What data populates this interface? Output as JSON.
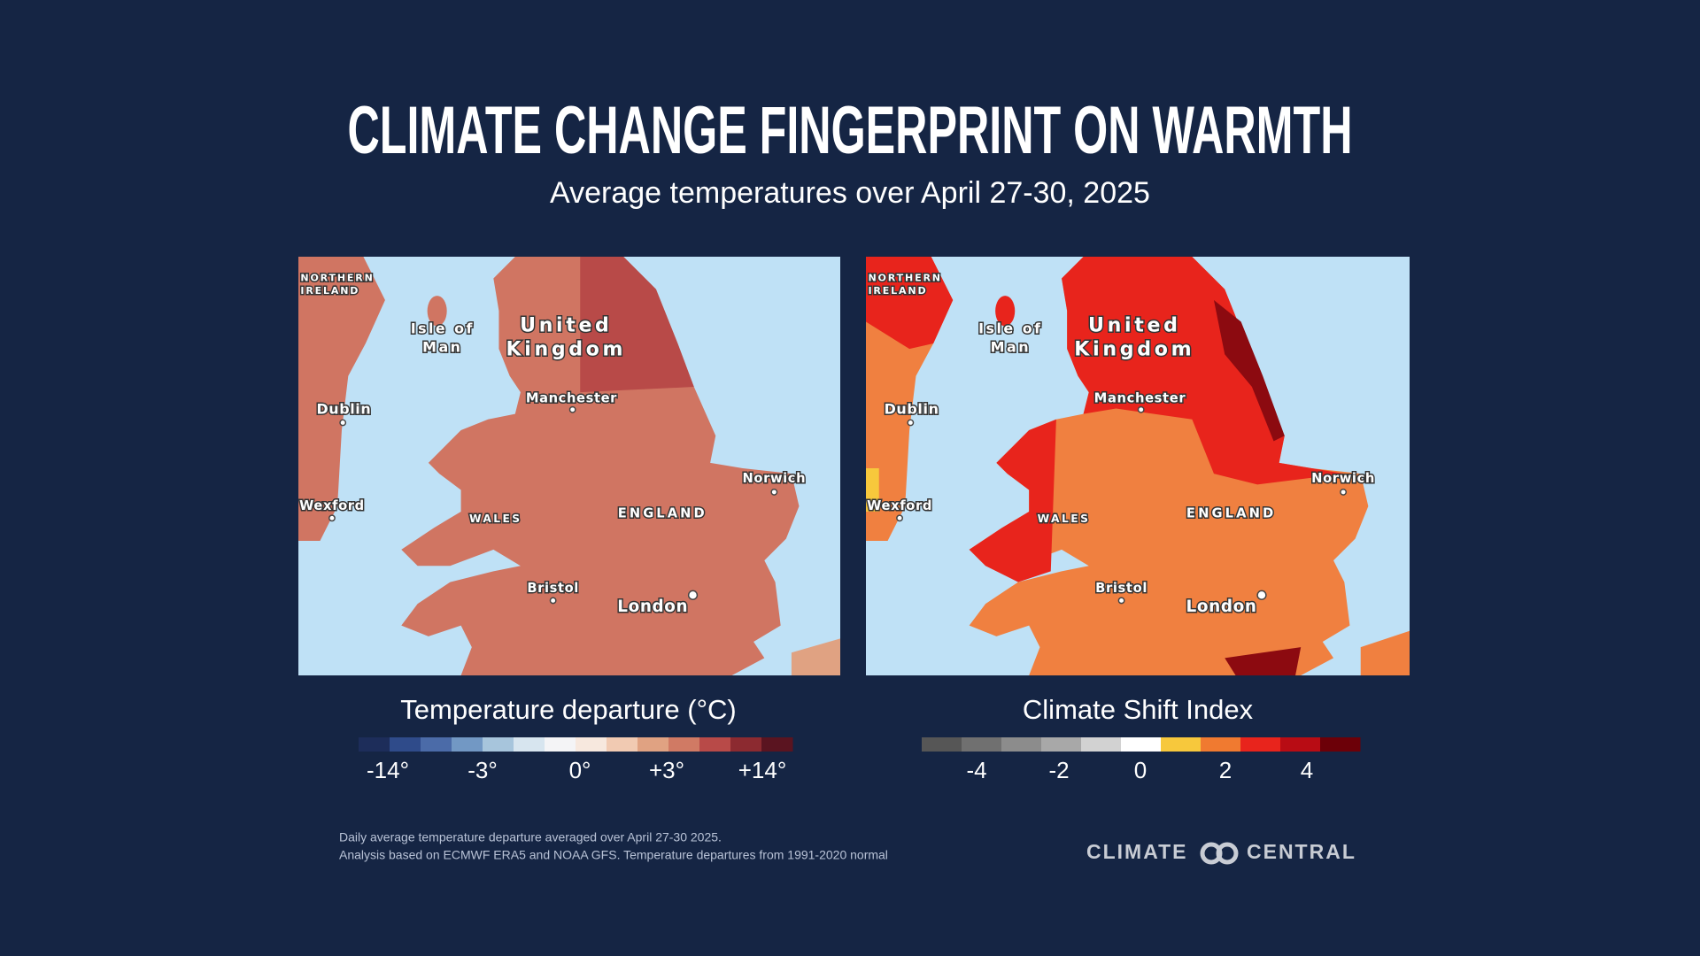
{
  "header": {
    "title": "CLIMATE CHANGE FINGERPRINT ON WARMTH",
    "subtitle": "Average temperatures over April 27-30, 2025"
  },
  "map_labels": {
    "northern_ireland": [
      "NORTHERN",
      "IRELAND"
    ],
    "isle_of_man": [
      "Isle of",
      "Man"
    ],
    "united_kingdom": [
      "United",
      "Kingdom"
    ],
    "manchester": "Manchester",
    "dublin": "Dublin",
    "wexford": "Wexford",
    "wales": "WALES",
    "england": "ENGLAND",
    "norwich": "Norwich",
    "bristol": "Bristol",
    "london": "London"
  },
  "legends": [
    {
      "title": "Temperature departure (°C)",
      "colors": [
        "#1d2d5a",
        "#2f4b8a",
        "#4b6ba8",
        "#7298c4",
        "#a7c5dc",
        "#d7e5ef",
        "#f4f4f6",
        "#f7e8de",
        "#f1cab2",
        "#e0a282",
        "#d07a64",
        "#b84a48",
        "#8c2a30",
        "#5a1420"
      ],
      "labels": [
        "-14°",
        "-3°",
        "0°",
        "+3°",
        "+14°"
      ]
    },
    {
      "title": "Climate Shift Index",
      "colors": [
        "#565656",
        "#707070",
        "#8c8c8c",
        "#a8a8a8",
        "#d2d2d2",
        "#ffffff",
        "#f7c83c",
        "#f07a30",
        "#e8241c",
        "#b80c14",
        "#6c0008"
      ],
      "labels": [
        "-4",
        "-2",
        "0",
        "2",
        "4"
      ]
    }
  ],
  "footnote": [
    "Daily average temperature departure averaged over April 27-30 2025.",
    "Analysis based on ECMWF ERA5 and NOAA GFS. Temperature departures from 1991-2020 normal"
  ],
  "logo": [
    "CLIMATE",
    "CENTRAL"
  ]
}
